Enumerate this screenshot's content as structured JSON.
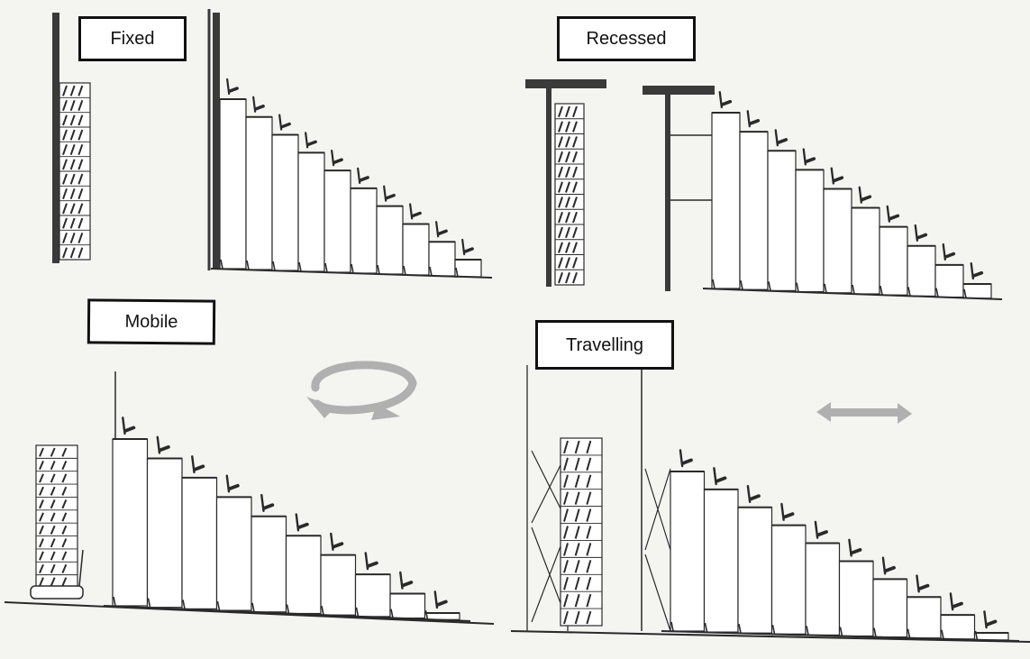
{
  "panels": {
    "fixed": {
      "label": "Fixed"
    },
    "recessed": {
      "label": "Recessed"
    },
    "mobile": {
      "label": "Mobile"
    },
    "travelling": {
      "label": "Travelling"
    }
  },
  "colors": {
    "background": "#f4f4f1",
    "line": "#2a2a2a",
    "wall": "#3a3a3a",
    "arrow": "#b0b0b0"
  },
  "icons": [
    "rotate-arrows-icon",
    "horizontal-double-arrow-icon",
    "seat-icon"
  ]
}
